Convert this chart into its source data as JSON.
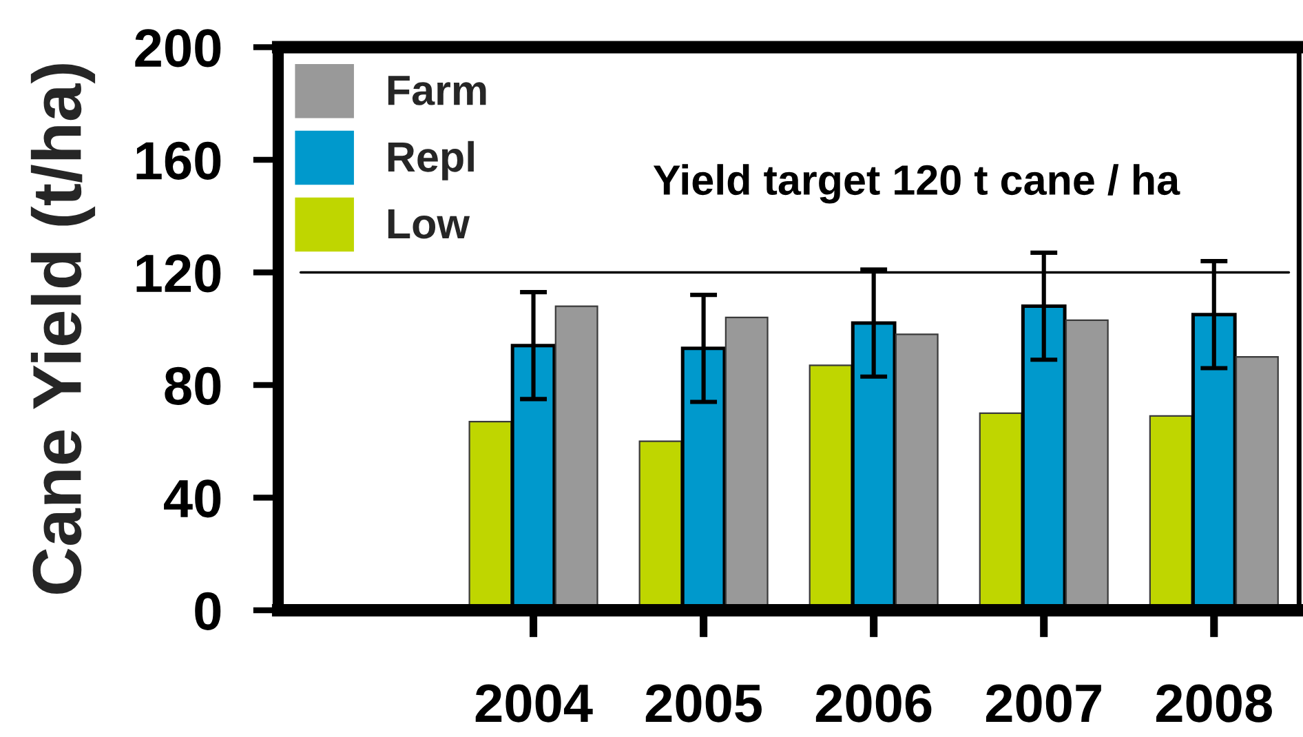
{
  "chart_data": {
    "type": "bar",
    "ylabel": "Cane Yield (t/ha)",
    "categories": [
      null,
      "2004",
      "2005",
      "2006",
      "2007",
      "2008"
    ],
    "series": [
      {
        "name": "Low",
        "color": "#bfd600",
        "values": [
          null,
          67,
          60,
          87,
          70,
          69
        ]
      },
      {
        "name": "Repl",
        "color": "#0099cc",
        "values": [
          null,
          94,
          93,
          102,
          108,
          105
        ],
        "errors": [
          null,
          19,
          19,
          19,
          19,
          19
        ]
      },
      {
        "name": "Farm",
        "color": "#999999",
        "values": [
          null,
          108,
          104,
          98,
          103,
          90
        ]
      }
    ],
    "ylim": [
      0,
      200
    ],
    "yticks": [
      0,
      40,
      80,
      120,
      160,
      200
    ],
    "ref_lines": [
      {
        "axis": "y",
        "value": 120,
        "label": "Yield target 120 t cane / ha",
        "color": "#000000"
      }
    ],
    "legend": "top left",
    "grid": false
  }
}
